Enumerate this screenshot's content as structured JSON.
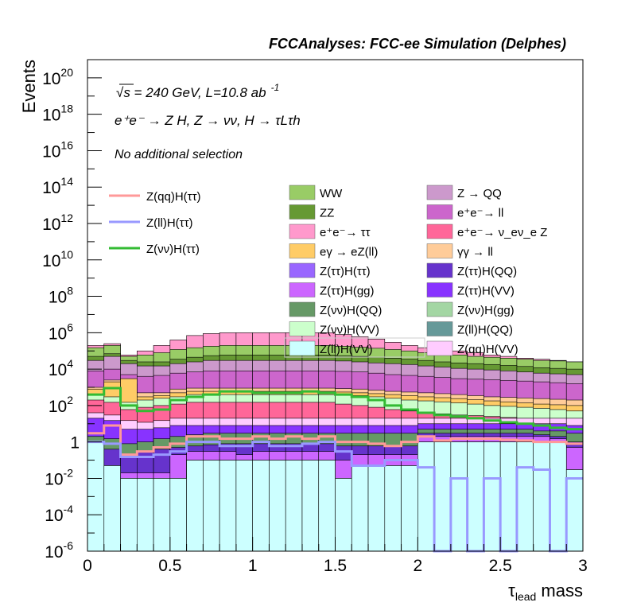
{
  "header": {
    "title": "FCCAnalyses: FCC-ee Simulation (Delphes)"
  },
  "annotations": {
    "energy": "√s = 240 GeV, L=10.8 ab",
    "energy_exp": "-1",
    "process": "e⁺e⁻ → Z H, Z → νν, H → τLτh",
    "selection": "No additional selection"
  },
  "chart_data": {
    "type": "bar",
    "stacked": true,
    "log_y": true,
    "xlabel": "τlead mass",
    "ylabel": "Events",
    "xlim": [
      0,
      3
    ],
    "ylim": [
      1e-06,
      1e+21
    ],
    "x_ticks": [
      "0",
      "0.5",
      "1",
      "1.5",
      "2",
      "2.5",
      "3"
    ],
    "y_ticks": [
      "10^-6",
      "10^-4",
      "10^-2",
      "1",
      "10^2",
      "10^4",
      "10^6",
      "10^8",
      "10^10",
      "10^12",
      "10^14",
      "10^16",
      "10^18",
      "10^20"
    ],
    "bin_edges": [
      0,
      0.1,
      0.2,
      0.3,
      0.4,
      0.5,
      0.6,
      0.7,
      0.8,
      0.9,
      1.0,
      1.1,
      1.2,
      1.3,
      1.4,
      1.5,
      1.6,
      1.7,
      1.8,
      1.9,
      2.0,
      2.1,
      2.2,
      2.3,
      2.4,
      2.5,
      2.6,
      2.7,
      2.8,
      2.9,
      3.0
    ],
    "stack_levels": [
      {
        "name": "Z(ll)H(VV)",
        "color": "#ccffff",
        "values": [
          1,
          0.05,
          0.01,
          0.01,
          0.01,
          0.01,
          0.1,
          0.1,
          0.1,
          0.1,
          0.1,
          0.1,
          0.1,
          0.1,
          0.1,
          0.01,
          0.05,
          0.05,
          0.05,
          0.05,
          1,
          1,
          1,
          1,
          1,
          1,
          1,
          1,
          1,
          0.03
        ]
      },
      {
        "name": "Z(νν)H(gg)",
        "color": "#a3d6a3",
        "values": [
          0.001,
          0.05,
          0.01,
          0.01,
          0.01,
          0.01,
          0.1,
          0.1,
          0.1,
          0.1,
          0.1,
          0.1,
          0.1,
          0.1,
          0.1,
          0.01,
          0.05,
          0.05,
          0.05,
          0.05,
          1,
          1,
          1,
          1,
          1,
          1,
          1,
          1,
          1,
          0.03
        ]
      },
      {
        "name": "Z(ττ)H(gg)",
        "color": "#cc66ff",
        "values": [
          0.05,
          0.05,
          0.02,
          0.02,
          0.02,
          0.2,
          0.3,
          0.3,
          0.3,
          0.2,
          0.3,
          0.3,
          0.3,
          0.3,
          0.3,
          0.1,
          0.2,
          0.2,
          0.2,
          0.2,
          2,
          2,
          2,
          2,
          2,
          2,
          2,
          2,
          1.5,
          0.5
        ]
      },
      {
        "name": "Z(ττ)H(ττ)",
        "color": "#6633cc",
        "values": [
          0.3,
          0.4,
          0.2,
          0.3,
          0.4,
          0.5,
          0.6,
          0.7,
          0.8,
          0.8,
          0.8,
          0.8,
          0.8,
          0.8,
          0.8,
          0.6,
          0.6,
          0.6,
          0.6,
          0.6,
          3,
          3,
          3,
          3,
          3,
          3,
          3,
          2.5,
          2,
          1
        ]
      },
      {
        "name": "Z(νν)H(QQ)",
        "color": "#669966",
        "values": [
          2,
          1.5,
          0.8,
          1,
          1.5,
          2,
          2.5,
          3,
          3,
          3,
          3,
          3,
          3,
          3,
          3,
          3,
          3,
          3,
          3,
          3,
          5,
          5,
          5,
          5,
          5,
          5,
          5,
          4,
          4,
          3
        ]
      },
      {
        "name": "Z(ττ)H(VV)",
        "color": "#8833ff",
        "values": [
          20,
          15,
          5,
          5,
          6,
          8,
          8,
          8,
          8,
          8,
          8,
          8,
          8,
          8,
          8,
          8,
          8,
          8,
          8,
          8,
          10,
          10,
          10,
          10,
          10,
          10,
          10,
          10,
          10,
          8
        ]
      },
      {
        "name": "Z(qq)H(VV)",
        "color": "#ffccff",
        "values": [
          40,
          30,
          15,
          12,
          15,
          20,
          20,
          20,
          20,
          20,
          20,
          20,
          20,
          20,
          20,
          20,
          20,
          20,
          20,
          20,
          20,
          20,
          20,
          20,
          20,
          20,
          20,
          20,
          20,
          20
        ]
      },
      {
        "name": "e⁺e⁻→ ν_eν_e Z",
        "color": "#ff6699",
        "values": [
          200,
          150,
          60,
          80,
          100,
          120,
          150,
          150,
          150,
          150,
          150,
          150,
          150,
          150,
          150,
          120,
          100,
          80,
          60,
          50,
          40,
          35,
          30,
          28,
          25,
          22,
          20,
          18,
          16,
          15
        ]
      },
      {
        "name": "Z(νν)H(VV)",
        "color": "#ccffcc",
        "values": [
          400,
          300,
          150,
          200,
          250,
          300,
          400,
          400,
          400,
          400,
          400,
          400,
          400,
          400,
          400,
          380,
          350,
          300,
          250,
          200,
          180,
          160,
          140,
          120,
          100,
          90,
          80,
          70,
          60,
          50
        ]
      },
      {
        "name": "eγ → eZ(ll)",
        "color": "#ffcc66",
        "values": [
          800,
          2000,
          3000,
          300,
          350,
          500,
          600,
          600,
          600,
          600,
          600,
          600,
          600,
          600,
          600,
          550,
          500,
          450,
          400,
          350,
          300,
          270,
          240,
          210,
          180,
          160,
          140,
          120,
          110,
          100
        ]
      },
      {
        "name": "γγ → ll",
        "color": "#ffcc99",
        "values": [
          1000,
          2500,
          1500,
          500,
          500,
          800,
          900,
          900,
          900,
          900,
          900,
          900,
          900,
          900,
          900,
          850,
          800,
          700,
          600,
          550,
          500,
          450,
          400,
          350,
          300,
          280,
          260,
          240,
          220,
          200
        ]
      },
      {
        "name": "e⁺e⁻→ ll",
        "color": "#cc66cc",
        "values": [
          8000,
          10000,
          5000,
          4000,
          4500,
          6000,
          7000,
          8000,
          8000,
          8000,
          8000,
          8000,
          8000,
          8000,
          8000,
          7500,
          7000,
          6000,
          5000,
          4500,
          4000,
          3500,
          3000,
          2800,
          2600,
          2400,
          2200,
          2000,
          1800,
          1600
        ]
      },
      {
        "name": "Z → QQ",
        "color": "#cc99cc",
        "values": [
          30000,
          50000,
          20000,
          15000,
          15000,
          20000,
          25000,
          30000,
          30000,
          30000,
          30000,
          30000,
          30000,
          30000,
          30000,
          28000,
          25000,
          22000,
          20000,
          18000,
          15000,
          13000,
          11000,
          10000,
          9000,
          8000,
          7000,
          6000,
          5500,
          5000
        ]
      },
      {
        "name": "ZZ",
        "color": "#669933",
        "values": [
          50000,
          70000,
          30000,
          25000,
          25000,
          35000,
          45000,
          55000,
          60000,
          60000,
          60000,
          60000,
          60000,
          60000,
          60000,
          55000,
          50000,
          45000,
          40000,
          35000,
          30000,
          25000,
          22000,
          20000,
          18000,
          16000,
          14000,
          12000,
          11000,
          10000
        ]
      },
      {
        "name": "WW",
        "color": "#99cc66",
        "values": [
          150000,
          200000,
          50000,
          60000,
          80000,
          120000,
          150000,
          180000,
          200000,
          200000,
          200000,
          200000,
          200000,
          200000,
          200000,
          180000,
          160000,
          140000,
          120000,
          100000,
          80000,
          70000,
          60000,
          50000,
          45000,
          40000,
          35000,
          30000,
          28000,
          25000
        ]
      },
      {
        "name": "e⁺e⁻→ ττ",
        "color": "#ff99cc",
        "values": [
          200000,
          250000,
          60000,
          100000,
          200000,
          400000,
          700000,
          900000,
          1000000,
          1000000,
          1000000,
          1000000,
          1000000,
          1000000,
          1000000,
          800000,
          600000,
          450000,
          300000,
          200000,
          150000,
          120000,
          100000,
          80000,
          60000,
          50000,
          40000,
          35000,
          30000,
          25000
        ]
      }
    ],
    "lines": [
      {
        "name": "Z(qq)H(ττ)",
        "color": "#ff9999",
        "values": [
          3,
          8,
          0.2,
          0.3,
          0.5,
          0.8,
          2,
          2,
          1.5,
          1.5,
          2,
          1.5,
          2,
          1.5,
          2,
          1,
          1,
          0.8,
          0.6,
          1,
          2,
          1.2,
          1.5,
          1.5,
          1.5,
          1.3,
          1.2,
          1,
          1,
          0.8
        ]
      },
      {
        "name": "Z(ll)H(ττ)",
        "color": "#9999ff",
        "values": [
          1,
          0.8,
          0.15,
          0.15,
          0.2,
          0.3,
          1,
          1,
          0.6,
          0.6,
          1,
          0.6,
          0.6,
          0.8,
          1,
          0.3,
          0.05,
          0.05,
          0.1,
          0.1,
          0.04,
          1e-06,
          0.01,
          1e-06,
          0.01,
          1e-06,
          0.04,
          0.03,
          1e-06,
          0.01
        ]
      },
      {
        "name": "Z(νν)H(ττ)",
        "color": "#33bb33",
        "values": [
          400,
          900,
          100,
          50,
          60,
          200,
          300,
          400,
          600,
          600,
          500,
          500,
          500,
          600,
          500,
          400,
          300,
          200,
          100,
          60,
          40,
          30,
          25,
          20,
          15,
          12,
          10,
          8,
          6,
          5
        ]
      }
    ],
    "legend": {
      "lines": [
        "Z(qq)H(ττ)",
        "Z(ll)H(ττ)",
        "Z(νν)H(ττ)"
      ],
      "col1": [
        {
          "label": "WW",
          "color": "#99cc66"
        },
        {
          "label": "ZZ",
          "color": "#669933"
        },
        {
          "label": "e⁺e⁻→ ττ",
          "color": "#ff99cc"
        },
        {
          "label": "eγ → eZ(ll)",
          "color": "#ffcc66"
        },
        {
          "label": "Z(ττ)H(ττ)",
          "color": "#9966ff"
        },
        {
          "label": "Z(ττ)H(gg)",
          "color": "#cc66ff"
        },
        {
          "label": "Z(νν)H(QQ)",
          "color": "#669966"
        },
        {
          "label": "Z(νν)H(VV)",
          "color": "#ccffcc"
        },
        {
          "label": "Z(ll)H(VV)",
          "color": "#ccffff"
        }
      ],
      "col2": [
        {
          "label": "Z → QQ",
          "color": "#cc99cc"
        },
        {
          "label": "e⁺e⁻→ ll",
          "color": "#cc66cc"
        },
        {
          "label": "e⁺e⁻→ ν_eν_e Z",
          "color": "#ff6699"
        },
        {
          "label": "γγ → ll",
          "color": "#ffcc99"
        },
        {
          "label": "Z(ττ)H(QQ)",
          "color": "#6633cc"
        },
        {
          "label": "Z(ττ)H(VV)",
          "color": "#8833ff"
        },
        {
          "label": "Z(νν)H(gg)",
          "color": "#a3d6a3"
        },
        {
          "label": "Z(ll)H(QQ)",
          "color": "#669999"
        },
        {
          "label": "Z(qq)H(VV)",
          "color": "#ffccff"
        }
      ]
    }
  }
}
